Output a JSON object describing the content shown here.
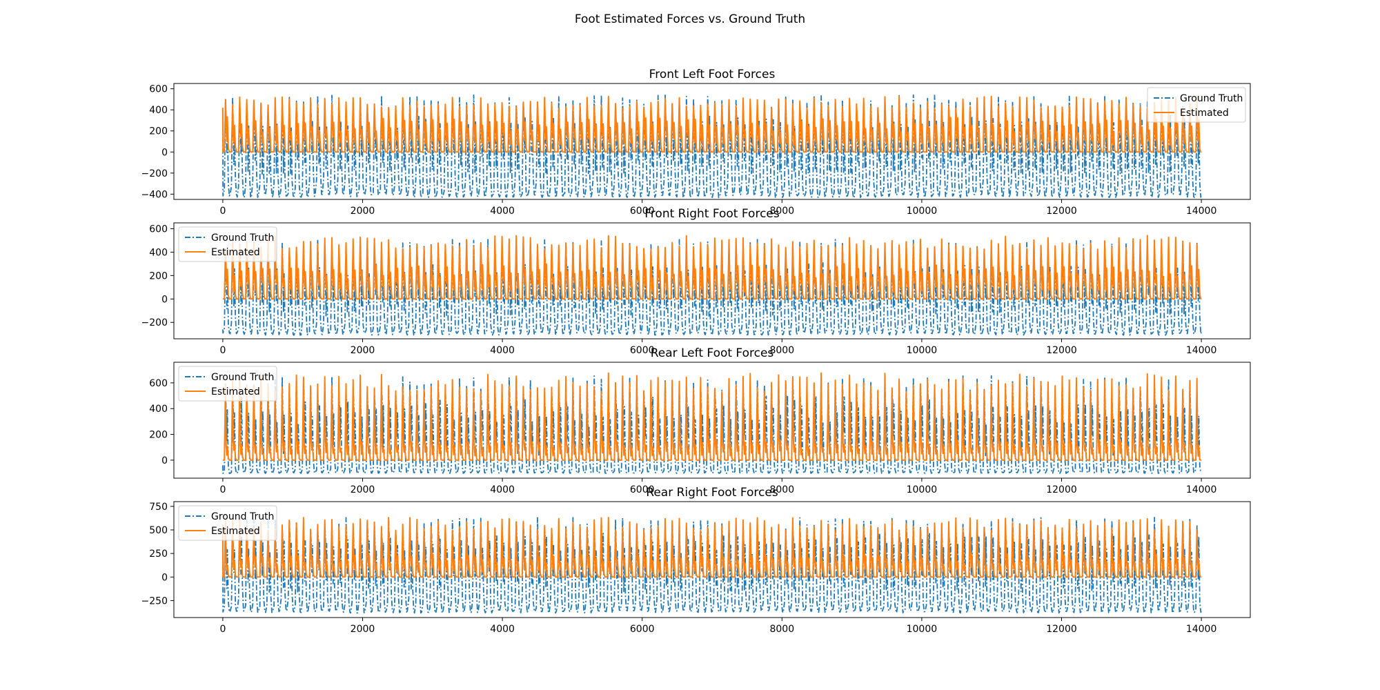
{
  "figure": {
    "title": "Foot Estimated Forces vs. Ground Truth"
  },
  "colors": {
    "ground_truth": "#1f77b4",
    "estimated": "#ff7f0e",
    "axes": "#000000",
    "legend_frame": "#cccccc"
  },
  "chart_data": [
    {
      "type": "line",
      "title": "Front Left Foot Forces",
      "xlabel": "",
      "ylabel": "",
      "xlim": [
        -700,
        14700
      ],
      "ylim": [
        -450,
        650
      ],
      "xticks": [
        0,
        2000,
        4000,
        6000,
        8000,
        10000,
        12000,
        14000
      ],
      "yticks": [
        -400,
        -200,
        0,
        200,
        400,
        600
      ],
      "grid": false,
      "legend_position": "upper-right",
      "legend": [
        "Ground Truth",
        "Estimated"
      ],
      "x_range": [
        0,
        14000
      ],
      "approx_cycles": 138,
      "series": [
        {
          "name": "Ground Truth",
          "style": "dashdot",
          "min": -420,
          "peak": 480,
          "start": 350,
          "secondary": 260
        },
        {
          "name": "Estimated",
          "style": "solid",
          "min": 0,
          "peak": 470,
          "start": 420,
          "secondary": 250
        }
      ]
    },
    {
      "type": "line",
      "title": "Front Right Foot Forces",
      "xlabel": "",
      "ylabel": "",
      "xlim": [
        -700,
        14700
      ],
      "ylim": [
        -340,
        650
      ],
      "xticks": [
        0,
        2000,
        4000,
        6000,
        8000,
        10000,
        12000,
        14000
      ],
      "yticks": [
        -200,
        0,
        200,
        400,
        600
      ],
      "grid": false,
      "legend_position": "upper-left",
      "legend": [
        "Ground Truth",
        "Estimated"
      ],
      "x_range": [
        0,
        14000
      ],
      "approx_cycles": 138,
      "series": [
        {
          "name": "Ground Truth",
          "style": "dashdot",
          "min": -300,
          "peak": 450,
          "start": -260,
          "secondary": 230
        },
        {
          "name": "Estimated",
          "style": "solid",
          "min": 0,
          "peak": 480,
          "start": 0,
          "secondary": 230
        }
      ]
    },
    {
      "type": "line",
      "title": "Rear Left Foot Forces",
      "xlabel": "",
      "ylabel": "",
      "xlim": [
        -700,
        14700
      ],
      "ylim": [
        -140,
        760
      ],
      "xticks": [
        0,
        2000,
        4000,
        6000,
        8000,
        10000,
        12000,
        14000
      ],
      "yticks": [
        0,
        200,
        400,
        600
      ],
      "grid": false,
      "legend_position": "upper-left",
      "legend": [
        "Ground Truth",
        "Estimated"
      ],
      "x_range": [
        0,
        14000
      ],
      "approx_cycles": 138,
      "series": [
        {
          "name": "Ground Truth",
          "style": "dashdot",
          "min": -100,
          "peak": 580,
          "start": -40,
          "secondary": 380
        },
        {
          "name": "Estimated",
          "style": "solid",
          "min": 0,
          "peak": 600,
          "start": 0,
          "secondary": 120
        }
      ]
    },
    {
      "type": "line",
      "title": "Rear Right Foot Forces",
      "xlabel": "",
      "ylabel": "",
      "xlim": [
        -700,
        14700
      ],
      "ylim": [
        -430,
        800
      ],
      "xticks": [
        0,
        2000,
        4000,
        6000,
        8000,
        10000,
        12000,
        14000
      ],
      "yticks": [
        -250,
        0,
        250,
        500,
        750
      ],
      "grid": false,
      "legend_position": "upper-left",
      "legend": [
        "Ground Truth",
        "Estimated"
      ],
      "x_range": [
        0,
        14000
      ],
      "approx_cycles": 138,
      "series": [
        {
          "name": "Ground Truth",
          "style": "dashdot",
          "min": -370,
          "peak": 560,
          "start": 480,
          "secondary": 350
        },
        {
          "name": "Estimated",
          "style": "solid",
          "min": 0,
          "peak": 560,
          "start": 560,
          "secondary": 180
        }
      ]
    }
  ]
}
